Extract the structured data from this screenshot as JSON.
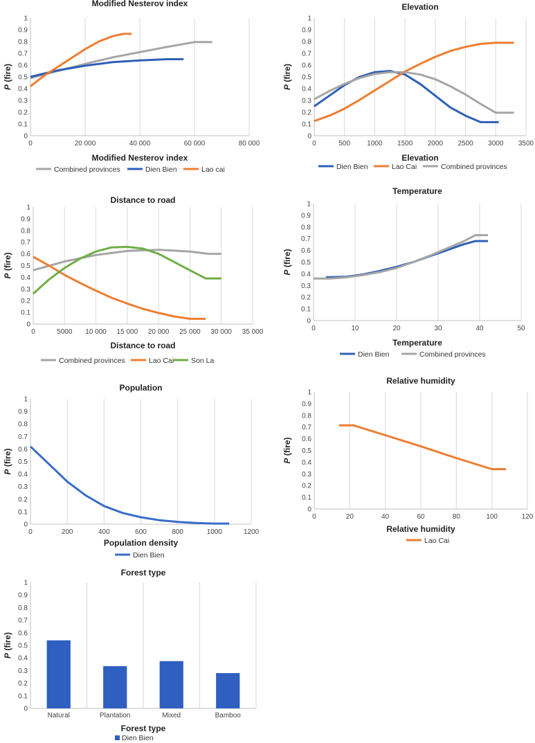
{
  "chart_data": [
    {
      "id": "nesterov",
      "type": "line",
      "title": "Modified Nesterov index",
      "xlabel": "Modified Nesterov index",
      "ylabel_prefix": "P",
      "ylabel_suffix": " (fire)",
      "xlim": [
        0,
        80000
      ],
      "ylim": [
        0,
        1
      ],
      "xticks": [
        0,
        20000,
        40000,
        60000,
        80000
      ],
      "xtick_labels": [
        "0",
        "20 000",
        "40 000",
        "60 000",
        "80 000"
      ],
      "yticks": [
        0,
        0.1,
        0.2,
        0.3,
        0.4,
        0.5,
        0.6,
        0.7,
        0.8,
        0.9,
        1
      ],
      "ytick_labels": [
        "0",
        "0.1",
        "0.2",
        "0.3",
        "0.4",
        "0.5",
        "0.6",
        "0.7",
        "0.8",
        "0.9",
        "1"
      ],
      "grid": "vertical",
      "legend": "bottom",
      "series": [
        {
          "name": "Combined provinces",
          "color": "#a5a5a5",
          "x": [
            0,
            10000,
            20000,
            30000,
            40000,
            50000,
            60000,
            66500
          ],
          "y": [
            0.49,
            0.55,
            0.61,
            0.665,
            0.71,
            0.755,
            0.795,
            0.795
          ]
        },
        {
          "name": "Dien Bien",
          "color": "#2e5fb8",
          "x": [
            0,
            10000,
            20000,
            30000,
            40000,
            50000,
            56000
          ],
          "y": [
            0.5,
            0.555,
            0.595,
            0.625,
            0.64,
            0.65,
            0.65
          ]
        },
        {
          "name": "Lao cai",
          "color": "#ed7d31",
          "x": [
            0,
            5000,
            10000,
            15000,
            20000,
            25000,
            30000,
            34000,
            37000
          ],
          "y": [
            0.42,
            0.51,
            0.585,
            0.66,
            0.735,
            0.8,
            0.845,
            0.865,
            0.865
          ]
        }
      ]
    },
    {
      "id": "elevation",
      "type": "line",
      "title": "Elevation",
      "xlabel": "Elevation",
      "ylabel_prefix": "P",
      "ylabel_suffix": " (fire)",
      "xlim": [
        0,
        3500
      ],
      "ylim": [
        0,
        1
      ],
      "xticks": [
        0,
        500,
        1000,
        1500,
        2000,
        2500,
        3000,
        3500
      ],
      "xtick_labels": [
        "0",
        "500",
        "1000",
        "1500",
        "2000",
        "2500",
        "3000",
        "3500"
      ],
      "yticks": [
        0,
        0.1,
        0.2,
        0.3,
        0.4,
        0.5,
        0.6,
        0.7,
        0.8,
        0.9,
        1
      ],
      "ytick_labels": [
        "0",
        "0.1",
        "0.2",
        "0.3",
        "0.4",
        "0.5",
        "0.6",
        "0.7",
        "0.8",
        "0.9",
        "1"
      ],
      "grid": "vertical",
      "legend": "bottom",
      "series": [
        {
          "name": "Dien Bien",
          "color": "#2e5fb8",
          "x": [
            0,
            250,
            500,
            750,
            1000,
            1250,
            1500,
            1750,
            2000,
            2250,
            2500,
            2750,
            3050
          ],
          "y": [
            0.25,
            0.34,
            0.43,
            0.5,
            0.54,
            0.55,
            0.52,
            0.44,
            0.34,
            0.24,
            0.17,
            0.115,
            0.115
          ]
        },
        {
          "name": "Lao Cai",
          "color": "#ed7d31",
          "x": [
            0,
            250,
            500,
            750,
            1000,
            1250,
            1500,
            1750,
            2000,
            2250,
            2500,
            2750,
            3000,
            3300
          ],
          "y": [
            0.125,
            0.17,
            0.23,
            0.305,
            0.385,
            0.465,
            0.545,
            0.61,
            0.67,
            0.72,
            0.755,
            0.78,
            0.79,
            0.79
          ]
        },
        {
          "name": "Combined provinces",
          "color": "#a5a5a5",
          "x": [
            0,
            250,
            500,
            750,
            1000,
            1250,
            1500,
            1750,
            2000,
            2250,
            2500,
            2750,
            3000,
            3300
          ],
          "y": [
            0.31,
            0.38,
            0.44,
            0.49,
            0.525,
            0.54,
            0.54,
            0.52,
            0.48,
            0.42,
            0.35,
            0.27,
            0.195,
            0.195
          ]
        }
      ]
    },
    {
      "id": "road",
      "type": "line",
      "title": "Distance to road",
      "xlabel": "Distance to road",
      "ylabel_prefix": "P",
      "ylabel_suffix": " (fire)",
      "xlim": [
        0,
        35000
      ],
      "ylim": [
        0,
        1
      ],
      "xticks": [
        0,
        5000,
        10000,
        15000,
        20000,
        25000,
        30000,
        35000
      ],
      "xtick_labels": [
        "0",
        "5000",
        "10 000",
        "15 000",
        "20 000",
        "25 000",
        "30 000",
        "35 000"
      ],
      "yticks": [
        0,
        0.1,
        0.2,
        0.3,
        0.4,
        0.5,
        0.6,
        0.7,
        0.8,
        0.9,
        1
      ],
      "ytick_labels": [
        "0",
        "0.1",
        "0.2",
        "0.3",
        "0.4",
        "0.5",
        "0.6",
        "0.7",
        "0.8",
        "0.9",
        "1"
      ],
      "grid": "vertical",
      "legend": "bottom",
      "series": [
        {
          "name": "Combined provinces",
          "color": "#a5a5a5",
          "x": [
            0,
            5000,
            10000,
            15000,
            20000,
            25000,
            28000,
            30000
          ],
          "y": [
            0.46,
            0.535,
            0.59,
            0.625,
            0.635,
            0.62,
            0.6,
            0.6
          ]
        },
        {
          "name": "Lao Cai",
          "color": "#ed7d31",
          "x": [
            0,
            2500,
            5000,
            7500,
            10000,
            12500,
            15000,
            17500,
            20000,
            22500,
            25000,
            27500
          ],
          "y": [
            0.575,
            0.5,
            0.42,
            0.35,
            0.285,
            0.225,
            0.175,
            0.13,
            0.095,
            0.065,
            0.045,
            0.045
          ]
        },
        {
          "name": "Son La",
          "color": "#70ad47",
          "x": [
            0,
            2500,
            5000,
            7500,
            10000,
            12500,
            15000,
            17500,
            20000,
            22500,
            25000,
            27500,
            30000
          ],
          "y": [
            0.26,
            0.38,
            0.48,
            0.56,
            0.62,
            0.655,
            0.66,
            0.645,
            0.6,
            0.53,
            0.46,
            0.39,
            0.39
          ]
        }
      ]
    },
    {
      "id": "temperature",
      "type": "line",
      "title": "Temperature",
      "xlabel": "Temperature",
      "ylabel_prefix": "P",
      "ylabel_suffix": " (fire)",
      "xlim": [
        0,
        50
      ],
      "ylim": [
        0,
        1
      ],
      "xticks": [
        0,
        10,
        20,
        30,
        40,
        50
      ],
      "xtick_labels": [
        "0",
        "10",
        "20",
        "30",
        "40",
        "50"
      ],
      "yticks": [
        0,
        0.1,
        0.2,
        0.3,
        0.4,
        0.5,
        0.6,
        0.7,
        0.8,
        0.9,
        1
      ],
      "ytick_labels": [
        "0",
        "0.1",
        "0.2",
        "0.3",
        "0.4",
        "0.5",
        "0.6",
        "0.7",
        "0.8",
        "0.9",
        "1"
      ],
      "grid": "vertical",
      "legend": "bottom",
      "series": [
        {
          "name": "Dien Bien",
          "color": "#2e5fb8",
          "x": [
            3,
            8,
            12,
            16,
            20,
            24,
            28,
            32,
            36,
            39,
            42
          ],
          "y": [
            0.37,
            0.375,
            0.395,
            0.425,
            0.46,
            0.5,
            0.55,
            0.6,
            0.65,
            0.68,
            0.68
          ]
        },
        {
          "name": "Combined provinces",
          "color": "#a5a5a5",
          "x": [
            0,
            4,
            8,
            12,
            16,
            20,
            24,
            28,
            32,
            36,
            39,
            42
          ],
          "y": [
            0.36,
            0.36,
            0.37,
            0.39,
            0.415,
            0.45,
            0.5,
            0.555,
            0.615,
            0.675,
            0.73,
            0.73
          ]
        }
      ]
    },
    {
      "id": "population",
      "type": "line",
      "title": "Population",
      "xlabel": "Population density",
      "ylabel_prefix": "P",
      "ylabel_suffix": " (fire)",
      "xlim": [
        0,
        1200
      ],
      "ylim": [
        0,
        1
      ],
      "xticks": [
        0,
        200,
        400,
        600,
        800,
        1000,
        1200
      ],
      "xtick_labels": [
        "0",
        "200",
        "400",
        "600",
        "800",
        "1000",
        "1200"
      ],
      "yticks": [
        0,
        0.1,
        0.2,
        0.3,
        0.4,
        0.5,
        0.6,
        0.7,
        0.8,
        0.9,
        1
      ],
      "ytick_labels": [
        "0",
        "0.1",
        "0.2",
        "0.3",
        "0.4",
        "0.5",
        "0.6",
        "0.7",
        "0.8",
        "0.9",
        "1"
      ],
      "grid": "vertical",
      "legend": "bottom",
      "series": [
        {
          "name": "Dien Bien",
          "color": "#3a6cc8",
          "x": [
            0,
            100,
            200,
            300,
            400,
            500,
            600,
            700,
            800,
            900,
            1000,
            1080
          ],
          "y": [
            0.62,
            0.48,
            0.34,
            0.23,
            0.145,
            0.09,
            0.055,
            0.032,
            0.018,
            0.01,
            0.005,
            0.005
          ]
        }
      ]
    },
    {
      "id": "humidity",
      "type": "line",
      "title": "Relative humidity",
      "xlabel": "Relative humidity",
      "ylabel_prefix": "P",
      "ylabel_suffix": " (fire)",
      "xlim": [
        0,
        120
      ],
      "ylim": [
        0,
        1
      ],
      "xticks": [
        0,
        20,
        40,
        60,
        80,
        100,
        120
      ],
      "xtick_labels": [
        "0",
        "20",
        "40",
        "60",
        "80",
        "100",
        "120"
      ],
      "yticks": [
        0,
        0.1,
        0.2,
        0.3,
        0.4,
        0.5,
        0.6,
        0.7,
        0.8,
        0.9,
        1
      ],
      "ytick_labels": [
        "0",
        "0.1",
        "0.2",
        "0.3",
        "0.4",
        "0.5",
        "0.6",
        "0.7",
        "0.8",
        "0.9",
        "1"
      ],
      "grid": "vertical",
      "legend": "bottom",
      "series": [
        {
          "name": "Lao Cai",
          "color": "#ed7d31",
          "x": [
            14,
            22,
            40,
            60,
            80,
            100,
            108
          ],
          "y": [
            0.715,
            0.715,
            0.63,
            0.535,
            0.435,
            0.34,
            0.34
          ]
        }
      ]
    },
    {
      "id": "forest",
      "type": "bar",
      "title": "Forest type",
      "xlabel": "Forest type",
      "ylabel_prefix": "P",
      "ylabel_suffix": " (fire)",
      "ylim": [
        0,
        1
      ],
      "yticks": [
        0,
        0.1,
        0.2,
        0.3,
        0.4,
        0.5,
        0.6,
        0.7,
        0.8,
        0.9,
        1
      ],
      "ytick_labels": [
        "0",
        "0.1",
        "0.2",
        "0.3",
        "0.4",
        "0.5",
        "0.6",
        "0.7",
        "0.8",
        "0.9",
        "1"
      ],
      "grid": "vertical",
      "legend": "bottom",
      "categories": [
        "Natural",
        "Plantation",
        "Mixed",
        "Bamboo"
      ],
      "series": [
        {
          "name": "Dien Bien",
          "color": "#2f5fc0",
          "values": [
            0.54,
            0.335,
            0.375,
            0.28
          ]
        }
      ]
    }
  ]
}
